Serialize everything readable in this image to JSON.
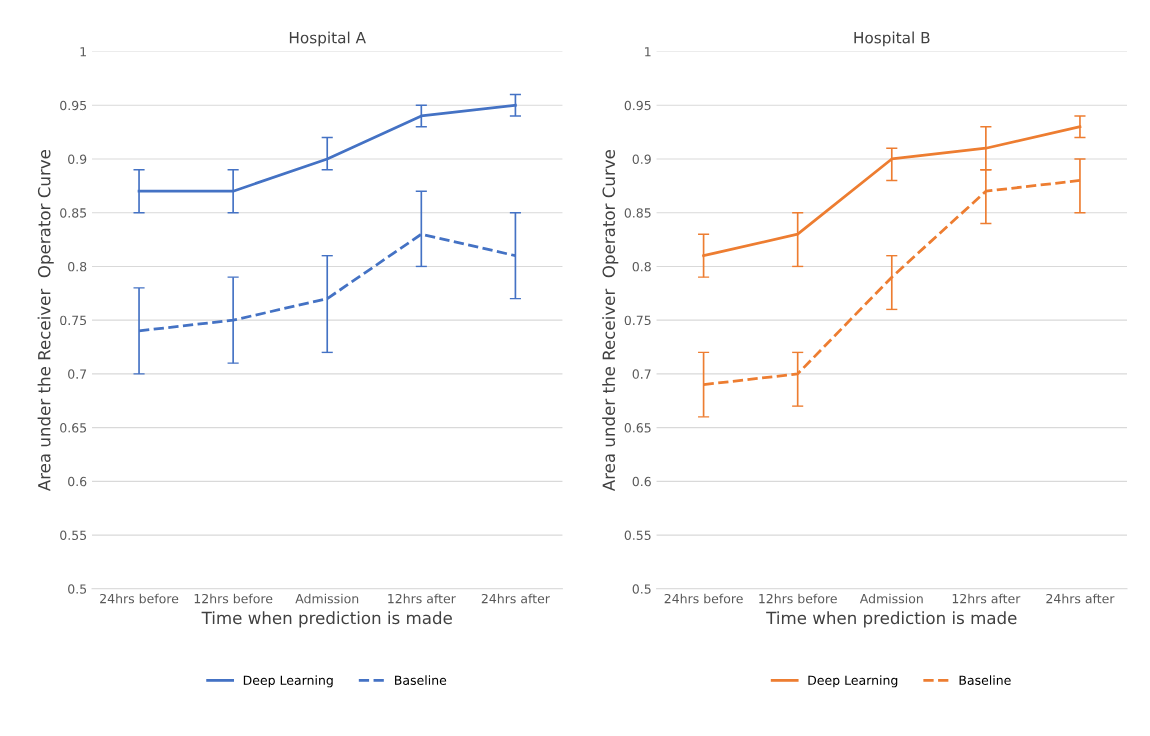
{
  "chart_data": [
    {
      "type": "line",
      "title": "Hospital A",
      "xlabel": "Time when prediction is made",
      "ylabel": "Area under the Receiver  Operator Curve",
      "categories": [
        "24hrs before",
        "12hrs before",
        "Admission",
        "12hrs after",
        "24hrs after"
      ],
      "ylim": [
        0.5,
        1
      ],
      "yticks": [
        0.5,
        0.55,
        0.6,
        0.65,
        0.7,
        0.75,
        0.8,
        0.85,
        0.9,
        0.95,
        1
      ],
      "grid": "y",
      "legend": "bottom",
      "series": [
        {
          "name": "Deep Learning",
          "color": "#4472c4",
          "line_style": "solid",
          "values": [
            0.87,
            0.87,
            0.9,
            0.94,
            0.95
          ],
          "errors": [
            [
              0.85,
              0.89
            ],
            [
              0.85,
              0.89
            ],
            [
              0.89,
              0.92
            ],
            [
              0.93,
              0.95
            ],
            [
              0.94,
              0.96
            ]
          ]
        },
        {
          "name": "Baseline",
          "color": "#4472c4",
          "line_style": "dashed",
          "values": [
            0.74,
            0.75,
            0.77,
            0.83,
            0.81
          ],
          "errors": [
            [
              0.7,
              0.78
            ],
            [
              0.71,
              0.79
            ],
            [
              0.72,
              0.81
            ],
            [
              0.8,
              0.87
            ],
            [
              0.77,
              0.85
            ]
          ]
        }
      ]
    },
    {
      "type": "line",
      "title": "Hospital B",
      "xlabel": "Time when prediction is made",
      "ylabel": "Area under the Receiver  Operator Curve",
      "categories": [
        "24hrs before",
        "12hrs before",
        "Admission",
        "12hrs after",
        "24hrs after"
      ],
      "ylim": [
        0.5,
        1
      ],
      "yticks": [
        0.5,
        0.55,
        0.6,
        0.65,
        0.7,
        0.75,
        0.8,
        0.85,
        0.9,
        0.95,
        1
      ],
      "grid": "y",
      "legend": "bottom",
      "series": [
        {
          "name": "Deep Learning",
          "color": "#ed7d31",
          "line_style": "solid",
          "values": [
            0.81,
            0.83,
            0.9,
            0.91,
            0.93
          ],
          "errors": [
            [
              0.79,
              0.83
            ],
            [
              0.8,
              0.85
            ],
            [
              0.88,
              0.91
            ],
            [
              0.89,
              0.93
            ],
            [
              0.92,
              0.94
            ]
          ]
        },
        {
          "name": "Baseline",
          "color": "#ed7d31",
          "line_style": "dashed",
          "values": [
            0.69,
            0.7,
            0.79,
            0.87,
            0.88
          ],
          "errors": [
            [
              0.66,
              0.72
            ],
            [
              0.67,
              0.72
            ],
            [
              0.76,
              0.81
            ],
            [
              0.84,
              0.89
            ],
            [
              0.85,
              0.9
            ]
          ]
        }
      ]
    }
  ]
}
